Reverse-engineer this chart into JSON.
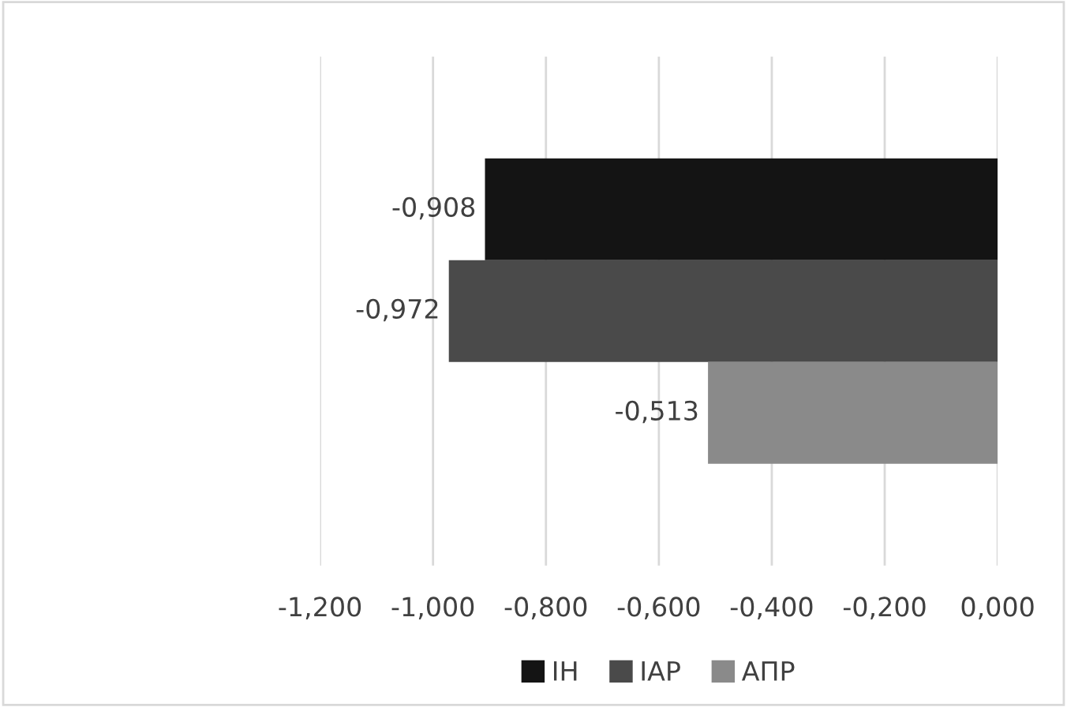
{
  "chart_data": {
    "type": "bar",
    "orientation": "horizontal",
    "categories": [
      null
    ],
    "series": [
      {
        "name": "IH",
        "color": "#141414",
        "values": [
          -0.908
        ],
        "value_labels": [
          "-0,908"
        ]
      },
      {
        "name": "IAP",
        "color": "#4a4a4a",
        "values": [
          -0.972
        ],
        "value_labels": [
          "-0,972"
        ]
      },
      {
        "name": "АПР",
        "color": "#8a8a8a",
        "values": [
          -0.513
        ],
        "value_labels": [
          "-0,513"
        ]
      }
    ],
    "xlim": [
      -1.2,
      0
    ],
    "xticks": [
      {
        "value": -1.2,
        "label": "-1,200"
      },
      {
        "value": -1.0,
        "label": "-1,000"
      },
      {
        "value": -0.8,
        "label": "-0,800"
      },
      {
        "value": -0.6,
        "label": "-0,600"
      },
      {
        "value": -0.4,
        "label": "-0,400"
      },
      {
        "value": -0.2,
        "label": "-0,200"
      },
      {
        "value": 0,
        "label": "0,000"
      }
    ],
    "grid": "x",
    "legend": "bottom"
  }
}
